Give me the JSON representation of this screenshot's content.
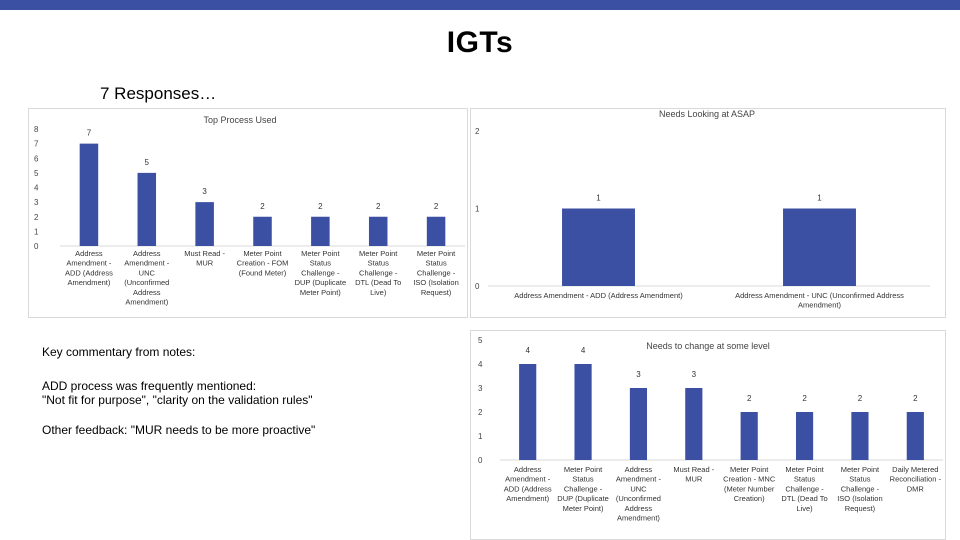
{
  "slide": {
    "title": "IGTs",
    "subtitle": "7 Responses…",
    "accent_color": "#3b4fa3"
  },
  "notes": {
    "heading": "Key commentary from notes:",
    "line1": "ADD process was frequently mentioned:",
    "line2": "\"Not fit for purpose\", \"clarity on the validation rules\"",
    "line3": "Other feedback: \"MUR needs to be more proactive\""
  },
  "chart_data": [
    {
      "type": "bar",
      "title": "Top Process Used",
      "categories": [
        "Address Amendment - ADD (Address Amendment)",
        "Address Amendment - UNC (Unconfirmed Address Amendment)",
        "Must Read - MUR",
        "Meter Point Creation - FOM (Found Meter)",
        "Meter Point Status Challenge - DUP (Duplicate Meter Point)",
        "Meter Point Status Challenge - DTL (Dead To Live)",
        "Meter Point Status Challenge - ISO (Isolation Request)"
      ],
      "category_lines": [
        [
          "Address",
          "Amendment -",
          "ADD (Address",
          "Amendment)"
        ],
        [
          "Address",
          "Amendment -",
          "UNC",
          "(Unconfirmed",
          "Address",
          "Amendment)"
        ],
        [
          "Must Read -",
          "MUR"
        ],
        [
          "Meter Point",
          "Creation - FOM",
          "(Found Meter)"
        ],
        [
          "Meter Point",
          "Status",
          "Challenge -",
          "DUP (Duplicate",
          "Meter Point)"
        ],
        [
          "Meter Point",
          "Status",
          "Challenge -",
          "DTL (Dead To",
          "Live)"
        ],
        [
          "Meter Point",
          "Status",
          "Challenge -",
          "ISO (Isolation",
          "Request)"
        ]
      ],
      "values": [
        7,
        5,
        3,
        2,
        2,
        2,
        2
      ],
      "ylim": [
        0,
        8
      ],
      "yticks": [
        0,
        1,
        2,
        3,
        4,
        5,
        6,
        7,
        8
      ],
      "grid": false,
      "bar_color": "#3b4fa3"
    },
    {
      "type": "bar",
      "title": "Needs Looking at ASAP",
      "categories": [
        "Address Amendment - ADD (Address Amendment)",
        "Address Amendment - UNC (Unconfirmed Address Amendment)"
      ],
      "category_lines": [
        [
          "Address Amendment - ADD (Address Amendment)"
        ],
        [
          "Address Amendment - UNC (Unconfirmed Address",
          "Amendment)"
        ]
      ],
      "values": [
        1,
        1
      ],
      "ylim": [
        0,
        2
      ],
      "yticks": [
        0,
        1,
        2
      ],
      "grid": false,
      "bar_color": "#3b4fa3"
    },
    {
      "type": "bar",
      "title": "Needs to change at some level",
      "categories": [
        "Address Amendment - ADD (Address Amendment)",
        "Meter Point Status Challenge - DUP (Duplicate Meter Point)",
        "Address Amendment - UNC (Unconfirmed Address Amendment)",
        "Must Read - MUR",
        "Meter Point Creation - MNC (Meter Number Creation)",
        "Meter Point Status Challenge - DTL (Dead To Live)",
        "Meter Point Status Challenge - ISO (Isolation Request)",
        "Daily Metered Reconciliation - DMR"
      ],
      "category_lines": [
        [
          "Address",
          "Amendment -",
          "ADD (Address",
          "Amendment)"
        ],
        [
          "Meter Point",
          "Status",
          "Challenge -",
          "DUP (Duplicate",
          "Meter Point)"
        ],
        [
          "Address",
          "Amendment -",
          "UNC",
          "(Unconfirmed",
          "Address",
          "Amendment)"
        ],
        [
          "Must Read -",
          "MUR"
        ],
        [
          "Meter Point",
          "Creation - MNC",
          "(Meter Number",
          "Creation)"
        ],
        [
          "Meter Point",
          "Status",
          "Challenge -",
          "DTL (Dead To",
          "Live)"
        ],
        [
          "Meter Point",
          "Status",
          "Challenge -",
          "ISO (Isolation",
          "Request)"
        ],
        [
          "Daily Metered",
          "Reconciliation -",
          "DMR"
        ]
      ],
      "values": [
        4,
        4,
        3,
        3,
        2,
        2,
        2,
        2
      ],
      "ylim": [
        0,
        5
      ],
      "yticks": [
        0,
        1,
        2,
        3,
        4,
        5
      ],
      "grid": false,
      "bar_color": "#3b4fa3"
    }
  ]
}
